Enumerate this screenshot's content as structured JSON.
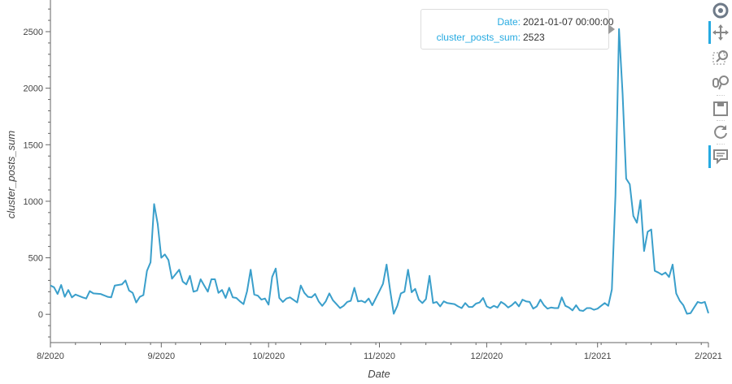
{
  "chart_data": {
    "type": "line",
    "xlabel": "Date",
    "ylabel": "cluster_posts_sum",
    "xlim": [
      "2020-08-01",
      "2021-02-01"
    ],
    "ylim": [
      -250,
      2780
    ],
    "x_ticks": [
      "8/2020",
      "9/2020",
      "10/2020",
      "11/2020",
      "12/2020",
      "1/2021",
      "2/2021"
    ],
    "x_tick_dates": [
      "2020-08-01",
      "2020-09-01",
      "2020-10-01",
      "2020-11-01",
      "2020-12-01",
      "2021-01-01",
      "2021-02-01"
    ],
    "y_ticks": [
      0,
      500,
      1000,
      1500,
      2000,
      2500
    ],
    "line_color": "#3a9fcb",
    "grid": false,
    "series": [
      {
        "values": [
          [
            "2020-08-01",
            255
          ],
          [
            "2020-08-02",
            240
          ],
          [
            "2020-08-03",
            180
          ],
          [
            "2020-08-04",
            260
          ],
          [
            "2020-08-05",
            155
          ],
          [
            "2020-08-06",
            215
          ],
          [
            "2020-08-07",
            150
          ],
          [
            "2020-08-08",
            175
          ],
          [
            "2020-08-10",
            150
          ],
          [
            "2020-08-11",
            140
          ],
          [
            "2020-08-12",
            205
          ],
          [
            "2020-08-13",
            185
          ],
          [
            "2020-08-15",
            180
          ],
          [
            "2020-08-17",
            155
          ],
          [
            "2020-08-18",
            150
          ],
          [
            "2020-08-19",
            255
          ],
          [
            "2020-08-21",
            265
          ],
          [
            "2020-08-22",
            300
          ],
          [
            "2020-08-23",
            210
          ],
          [
            "2020-08-24",
            190
          ],
          [
            "2020-08-25",
            105
          ],
          [
            "2020-08-26",
            155
          ],
          [
            "2020-08-27",
            170
          ],
          [
            "2020-08-28",
            385
          ],
          [
            "2020-08-29",
            460
          ],
          [
            "2020-08-30",
            975
          ],
          [
            "2020-08-31",
            800
          ],
          [
            "2020-09-01",
            500
          ],
          [
            "2020-09-02",
            530
          ],
          [
            "2020-09-03",
            480
          ],
          [
            "2020-09-04",
            315
          ],
          [
            "2020-09-06",
            395
          ],
          [
            "2020-09-07",
            290
          ],
          [
            "2020-09-08",
            265
          ],
          [
            "2020-09-09",
            340
          ],
          [
            "2020-09-10",
            200
          ],
          [
            "2020-09-11",
            210
          ],
          [
            "2020-09-12",
            310
          ],
          [
            "2020-09-13",
            255
          ],
          [
            "2020-09-14",
            200
          ],
          [
            "2020-09-15",
            310
          ],
          [
            "2020-09-16",
            310
          ],
          [
            "2020-09-17",
            190
          ],
          [
            "2020-09-18",
            215
          ],
          [
            "2020-09-19",
            145
          ],
          [
            "2020-09-20",
            235
          ],
          [
            "2020-09-21",
            150
          ],
          [
            "2020-09-22",
            145
          ],
          [
            "2020-09-23",
            115
          ],
          [
            "2020-09-24",
            90
          ],
          [
            "2020-09-25",
            205
          ],
          [
            "2020-09-26",
            395
          ],
          [
            "2020-09-27",
            175
          ],
          [
            "2020-09-28",
            165
          ],
          [
            "2020-09-29",
            130
          ],
          [
            "2020-09-30",
            140
          ],
          [
            "2020-10-01",
            85
          ],
          [
            "2020-10-02",
            330
          ],
          [
            "2020-10-03",
            405
          ],
          [
            "2020-10-04",
            145
          ],
          [
            "2020-10-05",
            110
          ],
          [
            "2020-10-06",
            140
          ],
          [
            "2020-10-07",
            150
          ],
          [
            "2020-10-09",
            105
          ],
          [
            "2020-10-10",
            255
          ],
          [
            "2020-10-11",
            190
          ],
          [
            "2020-10-12",
            155
          ],
          [
            "2020-10-13",
            150
          ],
          [
            "2020-10-14",
            180
          ],
          [
            "2020-10-15",
            115
          ],
          [
            "2020-10-16",
            75
          ],
          [
            "2020-10-17",
            115
          ],
          [
            "2020-10-18",
            185
          ],
          [
            "2020-10-19",
            125
          ],
          [
            "2020-10-20",
            90
          ],
          [
            "2020-10-21",
            55
          ],
          [
            "2020-10-22",
            75
          ],
          [
            "2020-10-23",
            110
          ],
          [
            "2020-10-24",
            120
          ],
          [
            "2020-10-25",
            235
          ],
          [
            "2020-10-26",
            115
          ],
          [
            "2020-10-27",
            120
          ],
          [
            "2020-10-28",
            105
          ],
          [
            "2020-10-29",
            140
          ],
          [
            "2020-10-30",
            80
          ],
          [
            "2020-11-01",
            205
          ],
          [
            "2020-11-02",
            270
          ],
          [
            "2020-11-03",
            440
          ],
          [
            "2020-11-04",
            210
          ],
          [
            "2020-11-05",
            5
          ],
          [
            "2020-11-06",
            75
          ],
          [
            "2020-11-07",
            185
          ],
          [
            "2020-11-08",
            200
          ],
          [
            "2020-11-09",
            395
          ],
          [
            "2020-11-10",
            195
          ],
          [
            "2020-11-11",
            225
          ],
          [
            "2020-11-12",
            130
          ],
          [
            "2020-11-13",
            100
          ],
          [
            "2020-11-14",
            135
          ],
          [
            "2020-11-15",
            340
          ],
          [
            "2020-11-16",
            100
          ],
          [
            "2020-11-17",
            110
          ],
          [
            "2020-11-18",
            70
          ],
          [
            "2020-11-19",
            115
          ],
          [
            "2020-11-20",
            100
          ],
          [
            "2020-11-22",
            90
          ],
          [
            "2020-11-23",
            70
          ],
          [
            "2020-11-24",
            55
          ],
          [
            "2020-11-25",
            100
          ],
          [
            "2020-11-26",
            65
          ],
          [
            "2020-11-27",
            65
          ],
          [
            "2020-11-28",
            95
          ],
          [
            "2020-11-29",
            105
          ],
          [
            "2020-11-30",
            145
          ],
          [
            "2020-12-01",
            70
          ],
          [
            "2020-12-02",
            55
          ],
          [
            "2020-12-03",
            75
          ],
          [
            "2020-12-04",
            60
          ],
          [
            "2020-12-05",
            110
          ],
          [
            "2020-12-06",
            90
          ],
          [
            "2020-12-07",
            60
          ],
          [
            "2020-12-08",
            80
          ],
          [
            "2020-12-09",
            110
          ],
          [
            "2020-12-10",
            70
          ],
          [
            "2020-12-11",
            130
          ],
          [
            "2020-12-12",
            115
          ],
          [
            "2020-12-13",
            110
          ],
          [
            "2020-12-14",
            50
          ],
          [
            "2020-12-15",
            70
          ],
          [
            "2020-12-16",
            130
          ],
          [
            "2020-12-17",
            80
          ],
          [
            "2020-12-18",
            50
          ],
          [
            "2020-12-19",
            60
          ],
          [
            "2020-12-20",
            55
          ],
          [
            "2020-12-21",
            55
          ],
          [
            "2020-12-22",
            150
          ],
          [
            "2020-12-23",
            75
          ],
          [
            "2020-12-24",
            60
          ],
          [
            "2020-12-25",
            35
          ],
          [
            "2020-12-26",
            80
          ],
          [
            "2020-12-27",
            35
          ],
          [
            "2020-12-28",
            30
          ],
          [
            "2020-12-29",
            55
          ],
          [
            "2020-12-30",
            55
          ],
          [
            "2020-12-31",
            40
          ],
          [
            "2021-01-01",
            50
          ],
          [
            "2021-01-02",
            75
          ],
          [
            "2021-01-03",
            100
          ],
          [
            "2021-01-04",
            75
          ],
          [
            "2021-01-05",
            220
          ],
          [
            "2021-01-06",
            1050
          ],
          [
            "2021-01-07",
            2523
          ],
          [
            "2021-01-08",
            1950
          ],
          [
            "2021-01-09",
            1200
          ],
          [
            "2021-01-10",
            1150
          ],
          [
            "2021-01-11",
            870
          ],
          [
            "2021-01-12",
            810
          ],
          [
            "2021-01-13",
            1010
          ],
          [
            "2021-01-14",
            560
          ],
          [
            "2021-01-15",
            730
          ],
          [
            "2021-01-16",
            750
          ],
          [
            "2021-01-17",
            385
          ],
          [
            "2021-01-18",
            370
          ],
          [
            "2021-01-19",
            350
          ],
          [
            "2021-01-20",
            370
          ],
          [
            "2021-01-21",
            330
          ],
          [
            "2021-01-22",
            440
          ],
          [
            "2021-01-23",
            185
          ],
          [
            "2021-01-24",
            120
          ],
          [
            "2021-01-25",
            80
          ],
          [
            "2021-01-26",
            5
          ],
          [
            "2021-01-27",
            10
          ],
          [
            "2021-01-28",
            60
          ],
          [
            "2021-01-29",
            110
          ],
          [
            "2021-01-30",
            100
          ],
          [
            "2021-01-31",
            110
          ],
          [
            "2021-02-01",
            10
          ]
        ]
      }
    ]
  },
  "tooltip": {
    "date_label": "Date:",
    "date_value": "2021-01-07 00:00:00",
    "value_label": "cluster_posts_sum:",
    "value_value": "2523"
  },
  "toolbar": {
    "icons": [
      "bokeh-logo-icon",
      "pan-icon",
      "box-zoom-icon",
      "wheel-zoom-icon",
      "save-icon",
      "reset-icon",
      "hover-icon"
    ]
  }
}
